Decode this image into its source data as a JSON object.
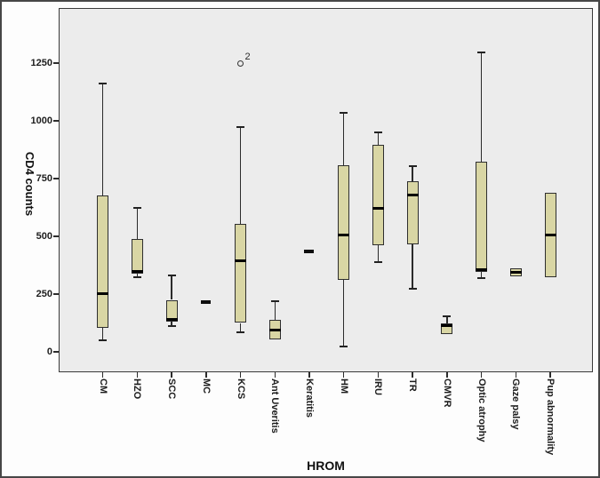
{
  "figure": {
    "background": "#fdfdfd",
    "plot_background": "#ececec",
    "frame_color": "#3a3a3a",
    "box_fill": "#d9d6a4",
    "box_border": "#2e2e2e",
    "whisker_color": "#2b2b2b",
    "median_color": "#000000"
  },
  "chart_data": {
    "type": "box",
    "title": "",
    "xlabel": "HROM",
    "ylabel": "CD4 counts",
    "ylim": [
      0,
      1450
    ],
    "yticks": [
      0,
      250,
      500,
      750,
      1000,
      1250
    ],
    "grid": false,
    "legend": false,
    "categories": [
      "CM",
      "HZO",
      "SCC",
      "MC",
      "KCS",
      "Ant Uveritis",
      "Keratitis",
      "HM",
      "IRU",
      "TR",
      "CMVR",
      "Optic atrophy",
      "Gaze palsy",
      "Pup abnormality"
    ],
    "boxes": [
      {
        "category": "CM",
        "min": 50,
        "q1": 105,
        "median": 252,
        "q3": 676,
        "max": 1160,
        "outliers": []
      },
      {
        "category": "HZO",
        "min": 325,
        "q1": 340,
        "median": 348,
        "q3": 490,
        "max": 625,
        "outliers": []
      },
      {
        "category": "SCC",
        "min": 110,
        "q1": 130,
        "median": 140,
        "q3": 225,
        "max": 330,
        "outliers": []
      },
      {
        "category": "MC",
        "min": 215,
        "q1": 215,
        "median": 215,
        "q3": 215,
        "max": 215,
        "outliers": []
      },
      {
        "category": "KCS",
        "min": 85,
        "q1": 125,
        "median": 395,
        "q3": 555,
        "max": 975,
        "outliers": [
          {
            "value": 1250,
            "label": "2"
          }
        ]
      },
      {
        "category": "Ant Uveritis",
        "min": 48,
        "q1": 55,
        "median": 96,
        "q3": 140,
        "max": 220,
        "outliers": []
      },
      {
        "category": "Keratitis",
        "min": 435,
        "q1": 435,
        "median": 435,
        "q3": 435,
        "max": 435,
        "outliers": []
      },
      {
        "category": "HM",
        "min": 25,
        "q1": 313,
        "median": 506,
        "q3": 806,
        "max": 1035,
        "outliers": []
      },
      {
        "category": "IRU",
        "min": 390,
        "q1": 460,
        "median": 623,
        "q3": 895,
        "max": 950,
        "outliers": []
      },
      {
        "category": "TR",
        "min": 275,
        "q1": 465,
        "median": 680,
        "q3": 740,
        "max": 805,
        "outliers": []
      },
      {
        "category": "CMVR",
        "min": 78,
        "q1": 78,
        "median": 115,
        "q3": 122,
        "max": 155,
        "outliers": []
      },
      {
        "category": "Optic atrophy",
        "min": 320,
        "q1": 345,
        "median": 355,
        "q3": 822,
        "max": 1295,
        "outliers": []
      },
      {
        "category": "Gaze palsy",
        "min": 325,
        "q1": 325,
        "median": 343,
        "q3": 360,
        "max": 360,
        "outliers": []
      },
      {
        "category": "Pup abnormality",
        "min": 323,
        "q1": 323,
        "median": 505,
        "q3": 690,
        "max": 690,
        "outliers": []
      }
    ]
  }
}
